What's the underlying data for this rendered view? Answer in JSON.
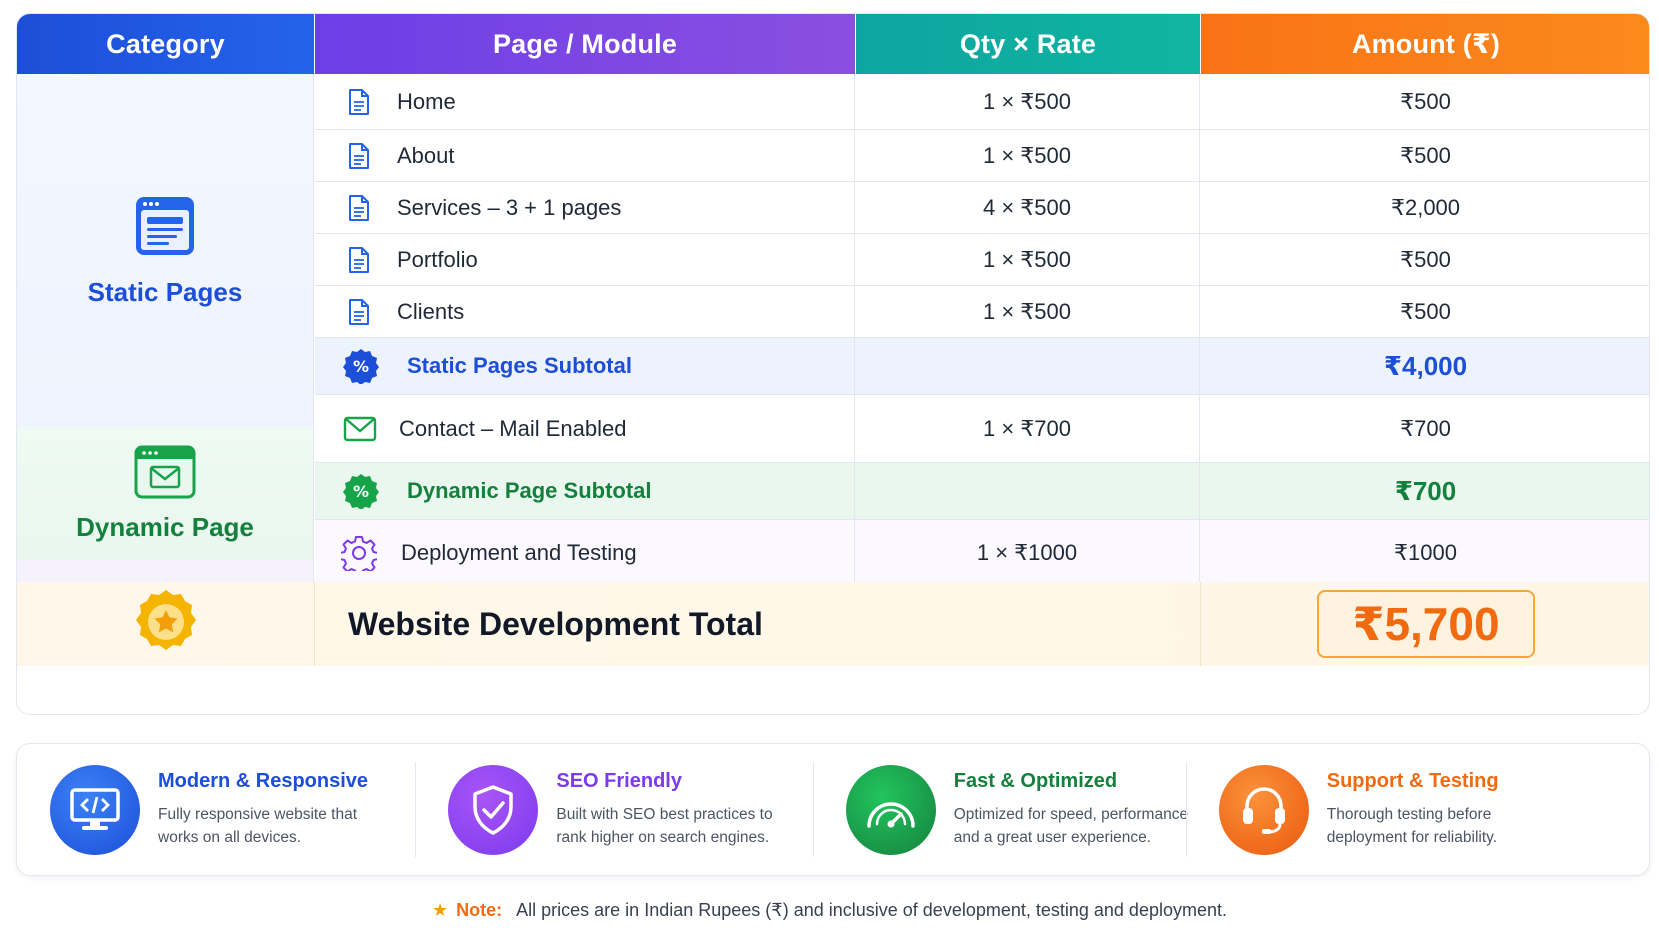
{
  "headers": {
    "category": "Category",
    "page_module": "Page / Module",
    "qty_rate": "Qty × Rate",
    "amount": "Amount (₹)"
  },
  "categories": {
    "static": "Static Pages",
    "dynamic": "Dynamic Page"
  },
  "static_rows": [
    {
      "page": "Home",
      "qty_rate": "1 × ₹500",
      "amount": "₹500"
    },
    {
      "page": "About",
      "qty_rate": "1 × ₹500",
      "amount": "₹500"
    },
    {
      "page": "Services – 3 + 1 pages",
      "qty_rate": "4 × ₹500",
      "amount": "₹2,000"
    },
    {
      "page": "Portfolio",
      "qty_rate": "1 × ₹500",
      "amount": "₹500"
    },
    {
      "page": "Clients",
      "qty_rate": "1 × ₹500",
      "amount": "₹500"
    }
  ],
  "static_subtotal": {
    "label": "Static Pages Subtotal",
    "amount": "₹4,000"
  },
  "dynamic_rows": [
    {
      "page": "Contact – Mail Enabled",
      "qty_rate": "1 × ₹700",
      "amount": "₹700"
    }
  ],
  "dynamic_subtotal": {
    "label": "Dynamic Page Subtotal",
    "amount": "₹700"
  },
  "deploy_row": {
    "page": "Deployment and Testing",
    "qty_rate": "1 × ₹1000",
    "amount": "₹1000"
  },
  "total": {
    "label": "Website Development Total",
    "amount": "₹5,700"
  },
  "features": [
    {
      "title": "Modern & Responsive",
      "desc": "Fully responsive website that works on all devices.",
      "color": "#1d4ed8",
      "icon": "code-monitor-icon"
    },
    {
      "title": "SEO Friendly",
      "desc": "Built with SEO best practices to rank higher on search engines.",
      "color": "#7c3aed",
      "icon": "shield-check-icon"
    },
    {
      "title": "Fast & Optimized",
      "desc": "Optimized for speed, performance and a great user experience.",
      "color": "#15803d",
      "icon": "speedometer-icon"
    },
    {
      "title": "Support & Testing",
      "desc": "Thorough testing before deployment for reliability.",
      "color": "#f06a0f",
      "icon": "headset-icon"
    }
  ],
  "note": {
    "label": "Note:",
    "text": "All prices are in Indian Rupees (₹) and inclusive of development, testing and deployment."
  }
}
